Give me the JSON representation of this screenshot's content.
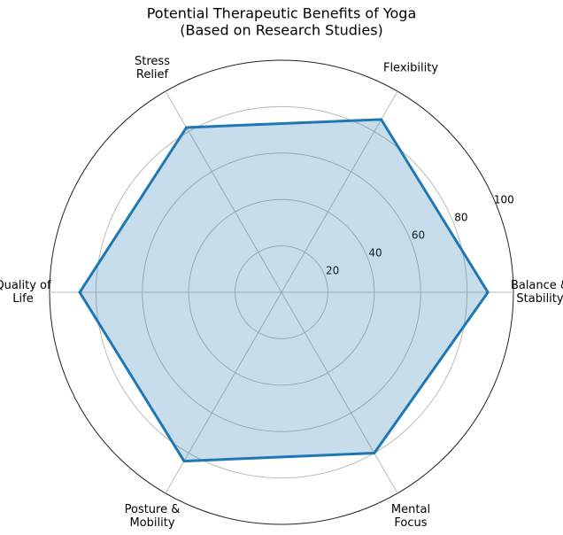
{
  "chart_data": {
    "type": "radar",
    "title": "Potential Therapeutic Benefits of Yoga",
    "subtitle": "(Based on Research Studies)",
    "categories": [
      [
        "Balance &",
        "Stability"
      ],
      [
        "Flexibility"
      ],
      [
        "Stress",
        "Relief"
      ],
      [
        "Quality of",
        "Life"
      ],
      [
        "Posture &",
        "Mobility"
      ],
      [
        "Mental",
        "Focus"
      ]
    ],
    "values": [
      89,
      86,
      82,
      87,
      84,
      80
    ],
    "color": "#1f77b4",
    "ylim": [
      0,
      100
    ],
    "yticks": [
      20,
      40,
      60,
      80,
      100
    ],
    "grid": true
  }
}
